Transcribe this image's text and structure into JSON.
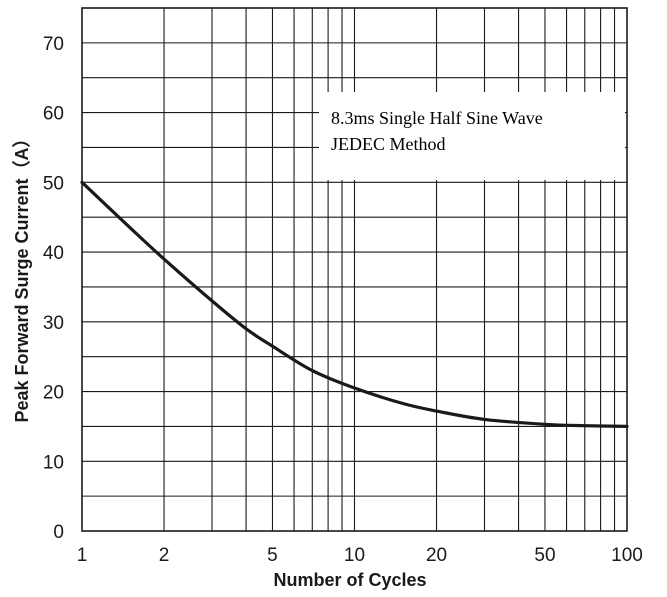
{
  "chart_data": {
    "type": "line",
    "title": "",
    "xlabel": "Number of Cycles",
    "ylabel": "Peak Forward Surge Current（A）",
    "x_scale": "log",
    "xlim": [
      1,
      100
    ],
    "ylim": [
      0,
      75
    ],
    "x_ticks": [
      1,
      2,
      5,
      10,
      20,
      50,
      100
    ],
    "x_tick_labels": [
      "1",
      "2",
      "5",
      "10",
      "20",
      "50",
      "100"
    ],
    "y_ticks": [
      0,
      10,
      20,
      30,
      40,
      50,
      60,
      70
    ],
    "y_tick_labels": [
      "0",
      "10",
      "20",
      "30",
      "40",
      "50",
      "60",
      "70"
    ],
    "grid": true,
    "annotation": [
      "8.3ms Single Half Sine Wave",
      "JEDEC Method"
    ],
    "series": [
      {
        "color": "#1a1a1a",
        "x": [
          1,
          1.5,
          2,
          3,
          4,
          5,
          7,
          10,
          15,
          20,
          30,
          50,
          70,
          100
        ],
        "y": [
          50,
          43.5,
          39,
          33,
          29,
          26.5,
          23,
          20.5,
          18.3,
          17.2,
          16,
          15.3,
          15.1,
          15
        ]
      }
    ]
  }
}
